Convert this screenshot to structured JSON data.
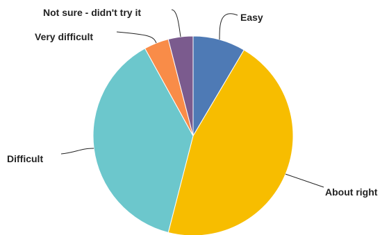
{
  "chart_data": {
    "type": "pie",
    "start_angle_deg": 0,
    "direction": "clockwise",
    "slices": [
      {
        "label": "Easy",
        "value": 8.5,
        "color": "#4e7ab5"
      },
      {
        "label": "About right",
        "value": 45.5,
        "color": "#f7bd00"
      },
      {
        "label": "Difficult",
        "value": 38,
        "color": "#6cc7cc"
      },
      {
        "label": "Very difficult",
        "value": 4,
        "color": "#f98c48"
      },
      {
        "label": "Not sure - didn't try it",
        "value": 4,
        "color": "#7b5b8e"
      }
    ]
  }
}
